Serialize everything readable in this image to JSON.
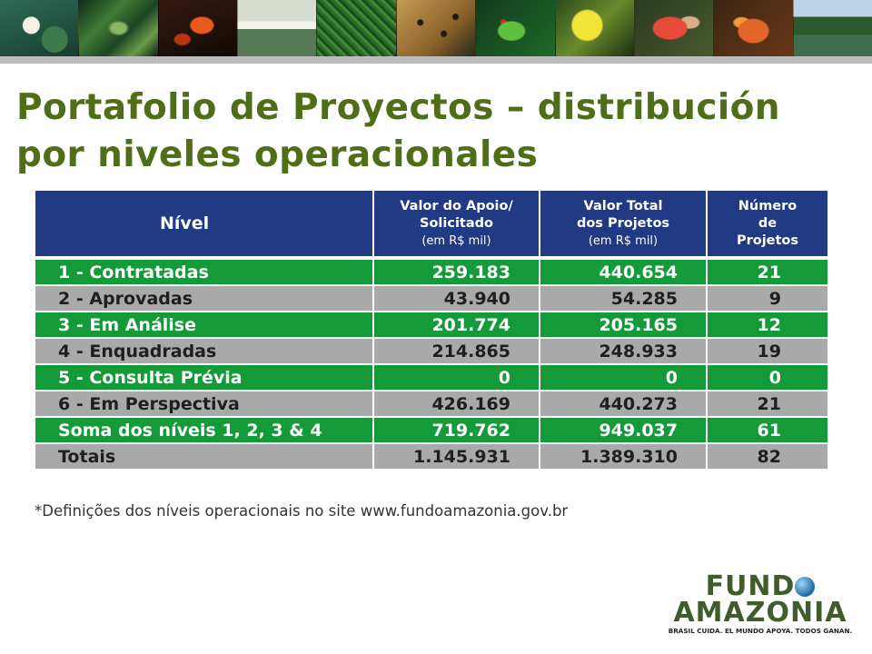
{
  "banner": {
    "photos": [
      "water-lily-photo",
      "leaves-photo",
      "orange-flower-photo",
      "river-house-photo",
      "forest-canopy-photo",
      "ocelot-photo",
      "green-frog-photo",
      "yellow-flower-photo",
      "red-monkey-photo",
      "orange-snake-photo",
      "river-forest-photo"
    ]
  },
  "title": {
    "line1": "Portafolio de Proyectos – distribución",
    "line2": "por niveles operacionales"
  },
  "table": {
    "headers": {
      "nivel": "Nível",
      "valor_apoio": "Valor do Apoio/",
      "valor_apoio_2": "Solicitado",
      "valor_apoio_unit": "(em R$ mil)",
      "valor_total": "Valor Total",
      "valor_total_2": "dos Projetos",
      "valor_total_unit": "(em R$ mil)",
      "numero": "Número",
      "numero_2": "de",
      "numero_3": "Projetos"
    },
    "rows": [
      {
        "nivel": "1 - Contratadas",
        "apoio": "259.183",
        "total": "440.654",
        "numero": "21",
        "color": "#149a39"
      },
      {
        "nivel": "2 - Aprovadas",
        "apoio": "43.940",
        "total": "54.285",
        "numero": "9",
        "color": "#a9a9a9"
      },
      {
        "nivel": "3 - Em Análise",
        "apoio": "201.774",
        "total": "205.165",
        "numero": "12",
        "color": "#149a39"
      },
      {
        "nivel": "4 - Enquadradas",
        "apoio": "214.865",
        "total": "248.933",
        "numero": "19",
        "color": "#a9a9a9"
      },
      {
        "nivel": "5 - Consulta Prévia",
        "apoio": "0",
        "total": "0",
        "numero": "0",
        "color": "#149a39"
      },
      {
        "nivel": "6 - Em Perspectiva",
        "apoio": "426.169",
        "total": "440.273",
        "numero": "21",
        "color": "#a9a9a9"
      },
      {
        "nivel": "Soma dos níveis 1, 2, 3 & 4",
        "apoio": "719.762",
        "total": "949.037",
        "numero": "61",
        "color": "#149a39"
      },
      {
        "nivel": "Totais",
        "apoio": "1.145.931",
        "total": "1.389.310",
        "numero": "82",
        "color": "#a9a9a9"
      }
    ]
  },
  "footnote": "*Definições dos níveis operacionais no site www.fundoamazonia.gov.br",
  "logo": {
    "line1a": "FUND",
    "line2": "AMAZONIA",
    "tagline": "BRASIL CUIDA. EL MUNDO APOYA. TODOS GANAN."
  },
  "colors": {
    "title": "#4e6f18",
    "header": "#203a84",
    "green_row": "#149a39",
    "gray_row": "#a9a9a9"
  }
}
